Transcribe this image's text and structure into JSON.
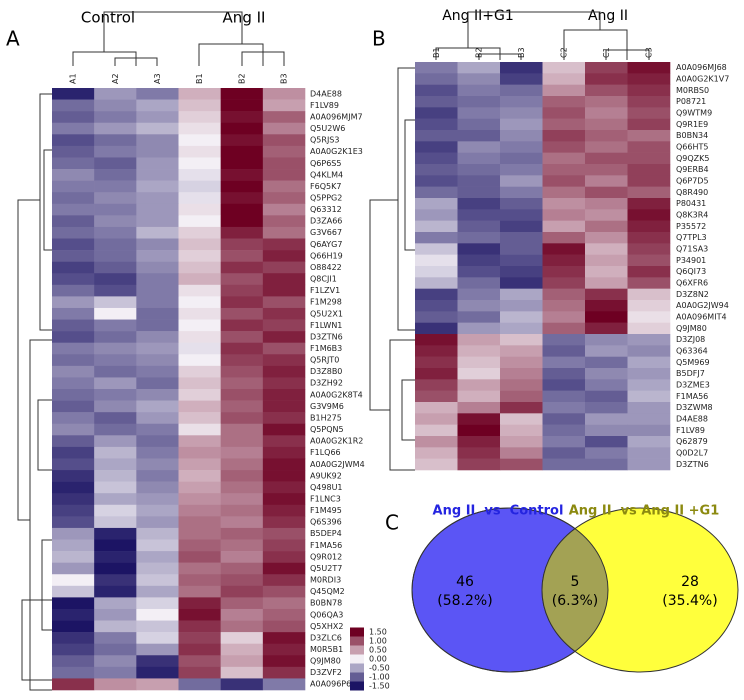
{
  "panel_a": {
    "label": "A",
    "groups": [
      "Control",
      "Ang II"
    ],
    "columns": [
      "A1",
      "A2",
      "A3",
      "B1",
      "B2",
      "B3"
    ],
    "rows": [
      "D4AE88",
      "F1LV89",
      "A0A096MJM7",
      "Q5U2W6",
      "Q5RJS3",
      "A0A0G2K1E3",
      "Q6P6S5",
      "Q4KLM4",
      "F6Q5K7",
      "Q5PPG2",
      "Q63312",
      "D3ZA66",
      "G3V667",
      "Q6AYG7",
      "Q66H19",
      "O88422",
      "Q8CJI1",
      "F1LZV1",
      "F1M298",
      "Q5U2X1",
      "F1LWN1",
      "D3ZTN6",
      "F1M6B3",
      "Q5RJT0",
      "D3Z8B0",
      "D3ZH92",
      "A0A0G2K8T4",
      "G3V9M6",
      "B1H275",
      "Q5PQN5",
      "A0A0G2K1R2",
      "F1LQ66",
      "A0A0G2JWM4",
      "A9UK92",
      "Q498U1",
      "F1LNC3",
      "F1M495",
      "Q6S396",
      "B5DEP4",
      "F1MA56",
      "Q9R012",
      "Q5U2T7",
      "M0RDI3",
      "Q45QM2",
      "B0BN78",
      "Q06QA3",
      "Q5XHX2",
      "D3ZLC6",
      "M0R5B1",
      "Q9JM80",
      "D3ZVF2",
      "A0A096P6M7"
    ],
    "values": [
      [
        -1.4,
        -0.6,
        -0.8,
        0.4,
        1.5,
        0.6
      ],
      [
        -0.9,
        -0.7,
        -0.5,
        0.3,
        1.5,
        0.5
      ],
      [
        -1.0,
        -0.8,
        -0.6,
        0.2,
        1.4,
        0.9
      ],
      [
        -0.8,
        -0.6,
        -0.4,
        0.1,
        1.5,
        0.7
      ],
      [
        -1.1,
        -0.9,
        -0.7,
        0.0,
        1.4,
        1.0
      ],
      [
        -1.0,
        -0.8,
        -0.7,
        0.1,
        1.5,
        0.9
      ],
      [
        -0.9,
        -1.0,
        -0.6,
        0.0,
        1.5,
        1.0
      ],
      [
        -0.7,
        -0.9,
        -0.6,
        -0.1,
        1.4,
        1.0
      ],
      [
        -0.8,
        -0.8,
        -0.5,
        -0.2,
        1.5,
        0.8
      ],
      [
        -0.9,
        -0.7,
        -0.6,
        -0.1,
        1.4,
        0.9
      ],
      [
        -0.8,
        -0.8,
        -0.6,
        0.1,
        1.5,
        0.7
      ],
      [
        -1.0,
        -0.7,
        -0.6,
        0.0,
        1.5,
        0.9
      ],
      [
        -0.9,
        -0.8,
        -0.4,
        0.2,
        1.3,
        0.8
      ],
      [
        -1.1,
        -0.9,
        -0.7,
        0.3,
        1.1,
        1.2
      ],
      [
        -1.0,
        -0.9,
        -0.6,
        0.2,
        1.0,
        1.3
      ],
      [
        -1.2,
        -1.0,
        -0.7,
        0.3,
        1.2,
        1.1
      ],
      [
        -1.1,
        -1.2,
        -0.8,
        0.4,
        1.0,
        1.3
      ],
      [
        -0.9,
        -1.1,
        -0.8,
        0.1,
        1.1,
        1.3
      ],
      [
        -0.6,
        -0.3,
        -0.8,
        0.0,
        1.2,
        1.0
      ],
      [
        -0.8,
        0.0,
        -0.9,
        0.1,
        1.0,
        1.2
      ],
      [
        -1.0,
        -0.8,
        -0.9,
        0.0,
        1.2,
        1.1
      ],
      [
        -1.1,
        -0.9,
        -0.7,
        0.1,
        1.0,
        1.3
      ],
      [
        -0.8,
        -0.7,
        -0.6,
        -0.1,
        1.2,
        1.0
      ],
      [
        -0.9,
        -0.8,
        -0.7,
        0.0,
        1.1,
        1.2
      ],
      [
        -0.7,
        -0.9,
        -0.8,
        0.2,
        1.0,
        1.3
      ],
      [
        -0.8,
        -0.6,
        -0.9,
        0.3,
        0.9,
        1.2
      ],
      [
        -0.9,
        -0.8,
        -0.7,
        0.2,
        1.0,
        1.3
      ],
      [
        -1.0,
        -0.7,
        -0.5,
        0.4,
        0.9,
        1.3
      ],
      [
        -0.8,
        -1.0,
        -0.6,
        0.3,
        1.0,
        1.2
      ],
      [
        -0.7,
        -0.9,
        -0.8,
        0.1,
        0.8,
        1.4
      ],
      [
        -1.0,
        -0.6,
        -0.9,
        0.5,
        0.8,
        1.2
      ],
      [
        -1.2,
        -0.4,
        -0.8,
        0.6,
        0.7,
        1.3
      ],
      [
        -1.1,
        -0.5,
        -0.7,
        0.5,
        0.8,
        1.4
      ],
      [
        -1.3,
        -0.4,
        -0.8,
        0.4,
        0.9,
        1.4
      ],
      [
        -1.4,
        -0.3,
        -0.7,
        0.5,
        0.8,
        1.3
      ],
      [
        -1.3,
        -0.5,
        -0.6,
        0.6,
        0.7,
        1.4
      ],
      [
        -1.2,
        -0.2,
        -0.5,
        0.7,
        0.8,
        1.3
      ],
      [
        -1.1,
        -0.3,
        -0.6,
        0.8,
        0.7,
        1.2
      ],
      [
        -0.6,
        -1.4,
        -0.4,
        0.8,
        0.9,
        1.0
      ],
      [
        -0.5,
        -1.5,
        -0.3,
        0.9,
        0.8,
        1.1
      ],
      [
        -0.4,
        -1.4,
        -0.5,
        1.0,
        0.7,
        1.2
      ],
      [
        -0.6,
        -1.5,
        -0.4,
        0.8,
        0.9,
        1.4
      ],
      [
        0.0,
        -1.3,
        -0.3,
        0.9,
        1.0,
        1.2
      ],
      [
        -0.3,
        -1.4,
        -0.5,
        0.8,
        1.1,
        1.0
      ],
      [
        -1.5,
        -0.5,
        -0.2,
        1.3,
        0.9,
        0.8
      ],
      [
        -1.4,
        -0.6,
        0.0,
        1.4,
        0.7,
        0.9
      ],
      [
        -1.5,
        -0.4,
        -0.3,
        1.2,
        0.8,
        1.0
      ],
      [
        -1.3,
        -0.8,
        -0.2,
        1.1,
        0.2,
        1.4
      ],
      [
        -1.2,
        -0.9,
        -0.6,
        1.2,
        0.4,
        1.3
      ],
      [
        -1.0,
        -0.7,
        -1.3,
        1.0,
        0.5,
        1.4
      ],
      [
        -0.9,
        -0.8,
        -1.4,
        1.1,
        0.3,
        1.2
      ],
      [
        1.2,
        0.6,
        0.5,
        -0.9,
        -1.3,
        -0.8
      ]
    ]
  },
  "panel_b": {
    "label": "B",
    "groups": [
      "Ang II+G1",
      "Ang II"
    ],
    "columns": [
      "B1",
      "B2",
      "B3",
      "C2",
      "C1",
      "C3"
    ],
    "rows": [
      "A0A096MJ68",
      "A0A0G2K1V7",
      "M0RBS0",
      "P08721",
      "Q9WTM9",
      "Q9R1E9",
      "B0BN34",
      "Q66HT5",
      "Q9QZK5",
      "Q9ERB4",
      "Q6P7D5",
      "Q8R490",
      "P80431",
      "Q8K3R4",
      "P35572",
      "Q7TPL3",
      "Q71SA3",
      "P34901",
      "Q6QI73",
      "Q6XFR6",
      "D3Z8N2",
      "A0A0G2JW94",
      "A0A096MIT4",
      "Q9JM80",
      "D3ZJ08",
      "Q63364",
      "Q5M969",
      "B5DFJ7",
      "D3ZME3",
      "F1MA56",
      "D3ZWM8",
      "D4AE88",
      "F1LV89",
      "Q62879",
      "Q0D2L7",
      "D3ZTN6"
    ],
    "values": [
      [
        -0.8,
        -0.5,
        -1.3,
        0.3,
        1.1,
        1.4
      ],
      [
        -0.9,
        -0.7,
        -1.2,
        0.4,
        1.2,
        1.3
      ],
      [
        -1.1,
        -0.8,
        -0.9,
        0.6,
        1.0,
        1.2
      ],
      [
        -1.0,
        -0.9,
        -0.8,
        0.9,
        0.8,
        1.1
      ],
      [
        -1.2,
        -0.8,
        -0.7,
        1.0,
        0.7,
        1.0
      ],
      [
        -1.1,
        -0.9,
        -0.6,
        0.9,
        0.8,
        1.1
      ],
      [
        -1.0,
        -1.0,
        -0.7,
        1.1,
        0.9,
        0.8
      ],
      [
        -1.2,
        -0.7,
        -0.8,
        1.0,
        0.8,
        1.0
      ],
      [
        -1.1,
        -0.8,
        -0.9,
        0.8,
        1.0,
        1.0
      ],
      [
        -1.0,
        -0.9,
        -0.8,
        0.9,
        0.9,
        1.1
      ],
      [
        -1.1,
        -1.0,
        -0.6,
        1.0,
        0.7,
        1.1
      ],
      [
        -0.9,
        -1.0,
        -0.8,
        0.8,
        1.0,
        0.9
      ],
      [
        -0.5,
        -1.2,
        -1.0,
        0.6,
        0.7,
        1.3
      ],
      [
        -0.6,
        -1.1,
        -1.1,
        0.7,
        0.6,
        1.4
      ],
      [
        -0.4,
        -1.0,
        -1.2,
        0.5,
        0.8,
        1.3
      ],
      [
        -0.8,
        -0.9,
        -1.0,
        0.9,
        0.6,
        1.2
      ],
      [
        -0.3,
        -1.3,
        -1.0,
        1.4,
        0.4,
        1.1
      ],
      [
        -0.1,
        -1.2,
        -1.1,
        1.3,
        0.5,
        1.0
      ],
      [
        -0.2,
        -1.1,
        -1.2,
        1.2,
        0.4,
        1.2
      ],
      [
        -0.4,
        -0.9,
        -1.3,
        1.1,
        0.5,
        1.0
      ],
      [
        -1.2,
        -0.8,
        -0.5,
        0.9,
        1.2,
        0.3
      ],
      [
        -1.1,
        -0.7,
        -0.6,
        0.8,
        1.4,
        0.2
      ],
      [
        -1.0,
        -0.9,
        -0.4,
        0.7,
        1.5,
        0.1
      ],
      [
        -1.3,
        -0.6,
        -0.5,
        0.9,
        1.3,
        0.2
      ],
      [
        1.4,
        0.5,
        0.3,
        -0.9,
        -0.7,
        -0.6
      ],
      [
        1.3,
        0.4,
        0.5,
        -1.0,
        -0.6,
        -0.7
      ],
      [
        1.2,
        0.3,
        0.6,
        -0.8,
        -0.9,
        -0.5
      ],
      [
        1.3,
        0.2,
        0.7,
        -1.0,
        -0.7,
        -0.6
      ],
      [
        1.1,
        0.5,
        0.8,
        -1.1,
        -0.8,
        -0.5
      ],
      [
        1.0,
        0.4,
        0.9,
        -0.9,
        -1.0,
        -0.4
      ],
      [
        0.4,
        0.7,
        1.2,
        -0.8,
        -0.9,
        -0.6
      ],
      [
        0.5,
        1.4,
        0.3,
        -1.0,
        -0.6,
        -0.6
      ],
      [
        0.3,
        1.5,
        0.4,
        -0.9,
        -0.7,
        -0.7
      ],
      [
        0.6,
        1.3,
        0.5,
        -0.8,
        -1.1,
        -0.5
      ],
      [
        0.4,
        1.2,
        0.7,
        -1.0,
        -0.8,
        -0.6
      ],
      [
        0.3,
        1.1,
        1.0,
        -0.9,
        -0.9,
        -0.6
      ]
    ]
  },
  "color_key": {
    "lim": [
      -1.5,
      1.5
    ],
    "low": "#1c1464",
    "mid": "#f3eff5",
    "high": "#6e0022",
    "ticks": [
      {
        "value": 1.5,
        "label": "1.50"
      },
      {
        "value": 1,
        "label": "1.00"
      },
      {
        "value": 0.5,
        "label": "0.50"
      },
      {
        "value": 0,
        "label": "0.00"
      },
      {
        "value": -0.5,
        "label": "-0.50"
      },
      {
        "value": -1,
        "label": "-1.00"
      },
      {
        "value": -1.5,
        "label": "-1.50"
      }
    ]
  },
  "venn": {
    "label": "C",
    "overlap_color": "#a3a254",
    "sets": [
      {
        "name": "Ang II  vs  Control",
        "color": "#5b55f5",
        "title_color": "#2424e0"
      },
      {
        "name": "Ang II  vs Ang II +G1",
        "color": "#ffff3c",
        "title_color": "#8c8a10"
      }
    ],
    "regions": [
      {
        "count": 46,
        "percent": "(58.2%)"
      },
      {
        "count": 5,
        "percent": "(6.3%)"
      },
      {
        "count": 28,
        "percent": "(35.4%)"
      }
    ]
  }
}
